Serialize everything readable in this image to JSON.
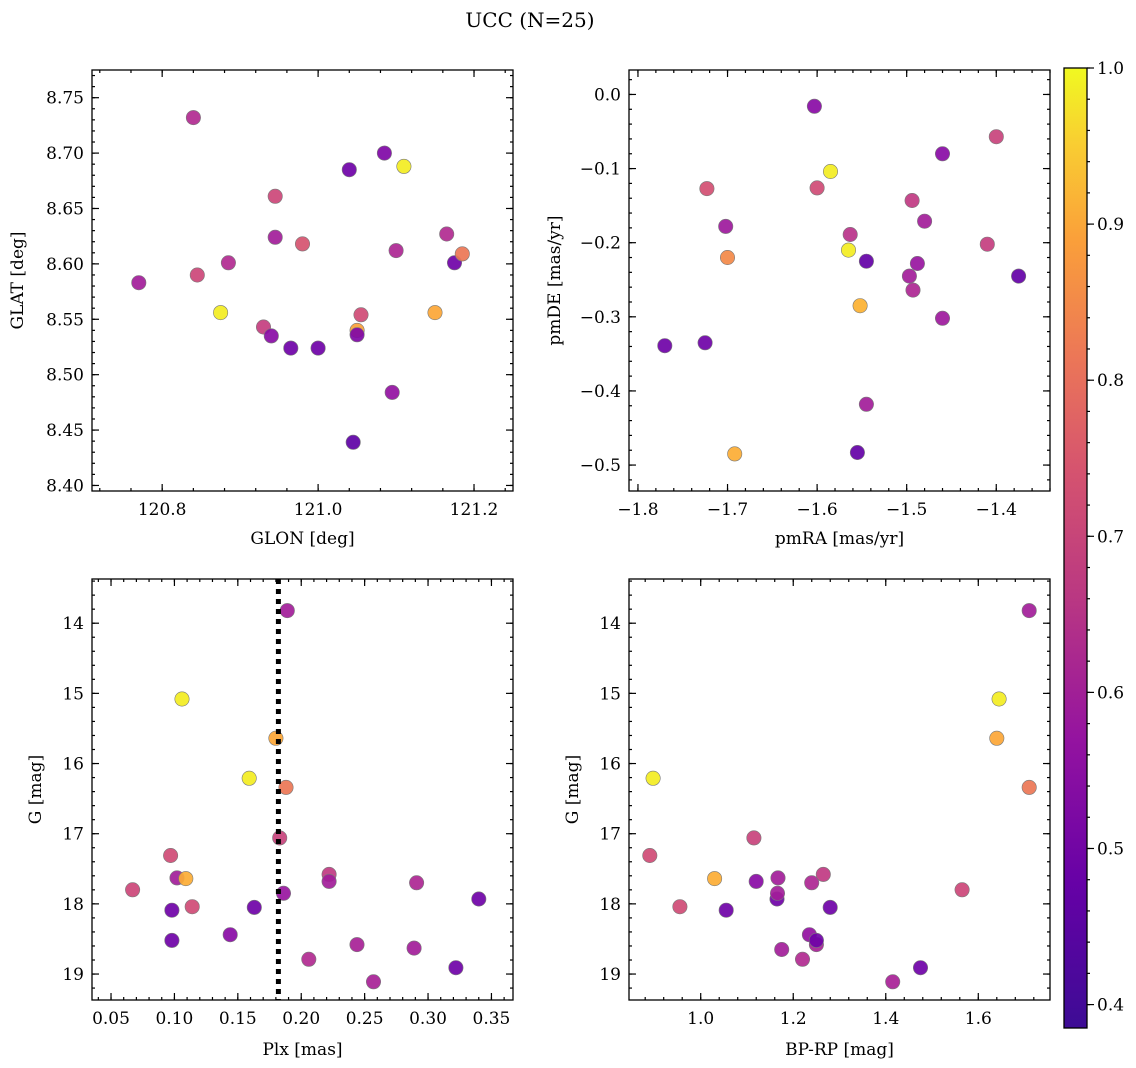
{
  "figure": {
    "title": "UCC (N=25)"
  },
  "colorbar": {
    "range": [
      0.385,
      1.0
    ],
    "ticks": [
      0.4,
      0.5,
      0.6,
      0.7,
      0.8,
      0.9,
      1.0
    ],
    "tick_labels": [
      "0.4",
      "0.5",
      "0.6",
      "0.7",
      "0.8",
      "0.9",
      "1.0"
    ],
    "colormap": "plasma"
  },
  "chart_data": [
    {
      "type": "scatter",
      "panel": "top-left",
      "xlabel": "GLON [deg]",
      "ylabel": "GLAT [deg]",
      "xlim": [
        120.71,
        121.25
      ],
      "ylim": [
        8.395,
        8.775
      ],
      "xticks": [
        120.8,
        121.0,
        121.2
      ],
      "xtick_labels": [
        "120.8",
        "121.0",
        "121.2"
      ],
      "yticks": [
        8.4,
        8.45,
        8.5,
        8.55,
        8.6,
        8.65,
        8.7,
        8.75
      ],
      "ytick_labels": [
        "8.40",
        "8.45",
        "8.50",
        "8.55",
        "8.60",
        "8.65",
        "8.70",
        "8.75"
      ],
      "points": [
        {
          "x": 120.77,
          "y": 8.583,
          "c": 0.55
        },
        {
          "x": 120.84,
          "y": 8.732,
          "c": 0.58
        },
        {
          "x": 120.845,
          "y": 8.59,
          "c": 0.65
        },
        {
          "x": 120.875,
          "y": 8.556,
          "c": 0.98
        },
        {
          "x": 120.885,
          "y": 8.601,
          "c": 0.58
        },
        {
          "x": 120.93,
          "y": 8.543,
          "c": 0.63
        },
        {
          "x": 120.94,
          "y": 8.535,
          "c": 0.5
        },
        {
          "x": 120.945,
          "y": 8.661,
          "c": 0.65
        },
        {
          "x": 120.945,
          "y": 8.624,
          "c": 0.55
        },
        {
          "x": 120.965,
          "y": 8.524,
          "c": 0.45
        },
        {
          "x": 120.98,
          "y": 8.618,
          "c": 0.68
        },
        {
          "x": 121.0,
          "y": 8.524,
          "c": 0.45
        },
        {
          "x": 121.04,
          "y": 8.685,
          "c": 0.45
        },
        {
          "x": 121.045,
          "y": 8.439,
          "c": 0.42
        },
        {
          "x": 121.05,
          "y": 8.54,
          "c": 0.85
        },
        {
          "x": 121.05,
          "y": 8.536,
          "c": 0.48
        },
        {
          "x": 121.055,
          "y": 8.554,
          "c": 0.66
        },
        {
          "x": 121.085,
          "y": 8.7,
          "c": 0.48
        },
        {
          "x": 121.095,
          "y": 8.484,
          "c": 0.52
        },
        {
          "x": 121.1,
          "y": 8.612,
          "c": 0.57
        },
        {
          "x": 121.11,
          "y": 8.688,
          "c": 0.98
        },
        {
          "x": 121.15,
          "y": 8.556,
          "c": 0.86
        },
        {
          "x": 121.165,
          "y": 8.627,
          "c": 0.58
        },
        {
          "x": 121.175,
          "y": 8.601,
          "c": 0.45
        },
        {
          "x": 121.185,
          "y": 8.609,
          "c": 0.76
        }
      ]
    },
    {
      "type": "scatter",
      "panel": "top-right",
      "xlabel": "pmRA [mas/yr]",
      "ylabel": "pmDE [mas/yr]",
      "xlim": [
        -1.81,
        -1.34
      ],
      "ylim": [
        -0.535,
        0.033
      ],
      "xticks": [
        -1.8,
        -1.7,
        -1.6,
        -1.5,
        -1.4
      ],
      "xtick_labels": [
        "−1.8",
        "−1.7",
        "−1.6",
        "−1.5",
        "−1.4"
      ],
      "yticks": [
        0.0,
        -0.1,
        -0.2,
        -0.3,
        -0.4,
        -0.5
      ],
      "ytick_labels": [
        "0.0",
        "−0.1",
        "−0.2",
        "−0.3",
        "−0.4",
        "−0.5"
      ],
      "points": [
        {
          "x": -1.77,
          "y": -0.339,
          "c": 0.45
        },
        {
          "x": -1.725,
          "y": -0.335,
          "c": 0.45
        },
        {
          "x": -1.723,
          "y": -0.127,
          "c": 0.67
        },
        {
          "x": -1.702,
          "y": -0.178,
          "c": 0.54
        },
        {
          "x": -1.7,
          "y": -0.22,
          "c": 0.8
        },
        {
          "x": -1.692,
          "y": -0.485,
          "c": 0.87
        },
        {
          "x": -1.603,
          "y": -0.016,
          "c": 0.5
        },
        {
          "x": -1.6,
          "y": -0.126,
          "c": 0.66
        },
        {
          "x": -1.585,
          "y": -0.104,
          "c": 0.98
        },
        {
          "x": -1.565,
          "y": -0.21,
          "c": 0.98
        },
        {
          "x": -1.563,
          "y": -0.189,
          "c": 0.6
        },
        {
          "x": -1.555,
          "y": -0.483,
          "c": 0.43
        },
        {
          "x": -1.552,
          "y": -0.285,
          "c": 0.88
        },
        {
          "x": -1.545,
          "y": -0.225,
          "c": 0.43
        },
        {
          "x": -1.545,
          "y": -0.418,
          "c": 0.55
        },
        {
          "x": -1.497,
          "y": -0.245,
          "c": 0.55
        },
        {
          "x": -1.494,
          "y": -0.143,
          "c": 0.62
        },
        {
          "x": -1.493,
          "y": -0.264,
          "c": 0.57
        },
        {
          "x": -1.488,
          "y": -0.228,
          "c": 0.53
        },
        {
          "x": -1.48,
          "y": -0.171,
          "c": 0.55
        },
        {
          "x": -1.46,
          "y": -0.08,
          "c": 0.5
        },
        {
          "x": -1.46,
          "y": -0.302,
          "c": 0.54
        },
        {
          "x": -1.41,
          "y": -0.202,
          "c": 0.63
        },
        {
          "x": -1.4,
          "y": -0.057,
          "c": 0.64
        },
        {
          "x": -1.375,
          "y": -0.245,
          "c": 0.43
        }
      ]
    },
    {
      "type": "scatter",
      "panel": "bottom-left",
      "xlabel": "Plx [mas]",
      "ylabel": "G [mag]",
      "xlim": [
        0.035,
        0.367
      ],
      "ylim": [
        19.37,
        13.37
      ],
      "y_inverted": true,
      "vline": 0.182,
      "xticks": [
        0.05,
        0.1,
        0.15,
        0.2,
        0.25,
        0.3,
        0.35
      ],
      "xtick_labels": [
        "0.05",
        "0.10",
        "0.15",
        "0.20",
        "0.25",
        "0.30",
        "0.35"
      ],
      "yticks": [
        14,
        15,
        16,
        17,
        18,
        19
      ],
      "ytick_labels": [
        "14",
        "15",
        "16",
        "17",
        "18",
        "19"
      ],
      "points": [
        {
          "x": 0.067,
          "y": 17.8,
          "c": 0.65
        },
        {
          "x": 0.097,
          "y": 17.31,
          "c": 0.66
        },
        {
          "x": 0.098,
          "y": 18.09,
          "c": 0.45
        },
        {
          "x": 0.098,
          "y": 18.52,
          "c": 0.45
        },
        {
          "x": 0.102,
          "y": 17.63,
          "c": 0.55
        },
        {
          "x": 0.106,
          "y": 15.08,
          "c": 0.98
        },
        {
          "x": 0.109,
          "y": 17.64,
          "c": 0.87
        },
        {
          "x": 0.114,
          "y": 18.04,
          "c": 0.66
        },
        {
          "x": 0.144,
          "y": 18.44,
          "c": 0.5
        },
        {
          "x": 0.159,
          "y": 16.21,
          "c": 0.98
        },
        {
          "x": 0.163,
          "y": 18.05,
          "c": 0.45
        },
        {
          "x": 0.18,
          "y": 15.64,
          "c": 0.86
        },
        {
          "x": 0.183,
          "y": 17.06,
          "c": 0.64
        },
        {
          "x": 0.186,
          "y": 17.85,
          "c": 0.53
        },
        {
          "x": 0.188,
          "y": 16.34,
          "c": 0.76
        },
        {
          "x": 0.189,
          "y": 13.82,
          "c": 0.55
        },
        {
          "x": 0.206,
          "y": 18.79,
          "c": 0.58
        },
        {
          "x": 0.222,
          "y": 17.58,
          "c": 0.62
        },
        {
          "x": 0.222,
          "y": 17.68,
          "c": 0.55
        },
        {
          "x": 0.244,
          "y": 18.58,
          "c": 0.56
        },
        {
          "x": 0.257,
          "y": 19.11,
          "c": 0.56
        },
        {
          "x": 0.289,
          "y": 18.63,
          "c": 0.55
        },
        {
          "x": 0.291,
          "y": 17.7,
          "c": 0.57
        },
        {
          "x": 0.322,
          "y": 18.91,
          "c": 0.45
        },
        {
          "x": 0.34,
          "y": 17.93,
          "c": 0.45
        }
      ]
    },
    {
      "type": "scatter",
      "panel": "bottom-right",
      "xlabel": "BP-RP [mag]",
      "ylabel": "G [mag]",
      "xlim": [
        0.845,
        1.755
      ],
      "ylim": [
        19.37,
        13.37
      ],
      "y_inverted": true,
      "xticks": [
        1.0,
        1.2,
        1.4,
        1.6
      ],
      "xtick_labels": [
        "1.0",
        "1.2",
        "1.4",
        "1.6"
      ],
      "yticks": [
        14,
        15,
        16,
        17,
        18,
        19
      ],
      "ytick_labels": [
        "14",
        "15",
        "16",
        "17",
        "18",
        "19"
      ],
      "points": [
        {
          "x": 0.89,
          "y": 17.31,
          "c": 0.66
        },
        {
          "x": 0.897,
          "y": 16.21,
          "c": 0.98
        },
        {
          "x": 0.955,
          "y": 18.04,
          "c": 0.66
        },
        {
          "x": 1.03,
          "y": 17.64,
          "c": 0.87
        },
        {
          "x": 1.055,
          "y": 18.09,
          "c": 0.45
        },
        {
          "x": 1.115,
          "y": 17.06,
          "c": 0.64
        },
        {
          "x": 1.12,
          "y": 17.68,
          "c": 0.5
        },
        {
          "x": 1.165,
          "y": 17.93,
          "c": 0.45
        },
        {
          "x": 1.166,
          "y": 17.85,
          "c": 0.55
        },
        {
          "x": 1.167,
          "y": 17.63,
          "c": 0.55
        },
        {
          "x": 1.175,
          "y": 18.65,
          "c": 0.55
        },
        {
          "x": 1.22,
          "y": 18.79,
          "c": 0.58
        },
        {
          "x": 1.235,
          "y": 18.44,
          "c": 0.52
        },
        {
          "x": 1.24,
          "y": 17.7,
          "c": 0.57
        },
        {
          "x": 1.25,
          "y": 18.58,
          "c": 0.56
        },
        {
          "x": 1.25,
          "y": 18.52,
          "c": 0.45
        },
        {
          "x": 1.265,
          "y": 17.58,
          "c": 0.62
        },
        {
          "x": 1.28,
          "y": 18.05,
          "c": 0.45
        },
        {
          "x": 1.415,
          "y": 19.11,
          "c": 0.56
        },
        {
          "x": 1.475,
          "y": 18.91,
          "c": 0.45
        },
        {
          "x": 1.565,
          "y": 17.8,
          "c": 0.65
        },
        {
          "x": 1.64,
          "y": 15.64,
          "c": 0.86
        },
        {
          "x": 1.645,
          "y": 15.08,
          "c": 0.98
        },
        {
          "x": 1.71,
          "y": 16.34,
          "c": 0.76
        },
        {
          "x": 1.71,
          "y": 13.82,
          "c": 0.55
        }
      ]
    }
  ]
}
